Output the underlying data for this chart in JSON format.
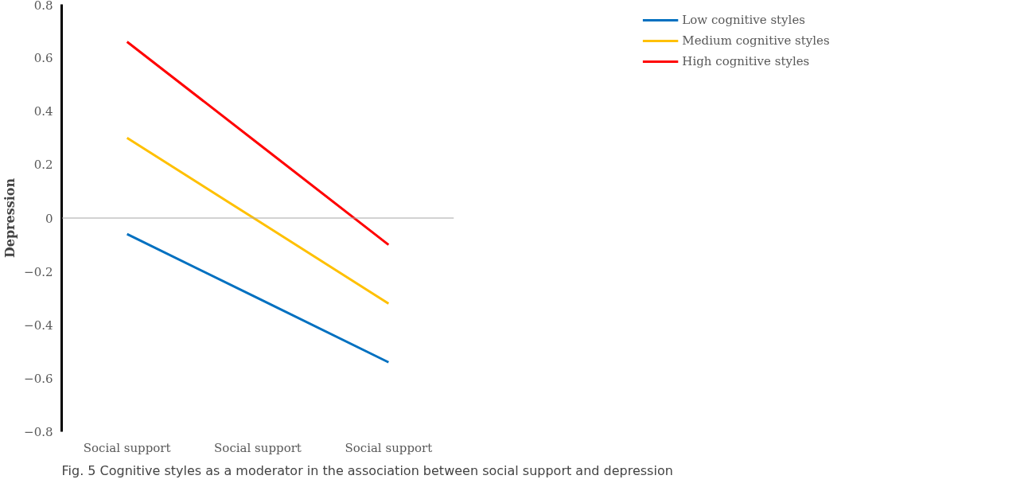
{
  "chart_data": {
    "type": "line",
    "ylabel": "Depression",
    "categories": [
      "Social support",
      "Social support",
      "Social support"
    ],
    "series": [
      {
        "name": "Low cognitive styles",
        "color": "#0070c0",
        "values": [
          -0.06,
          -0.3,
          -0.54
        ]
      },
      {
        "name": "Medium cognitive styles",
        "color": "#ffc000",
        "values": [
          0.3,
          -0.01,
          -0.32
        ]
      },
      {
        "name": "High cognitive styles",
        "color": "#ff0000",
        "values": [
          0.66,
          0.28,
          -0.1
        ]
      }
    ],
    "ylim": [
      -0.8,
      0.8
    ],
    "yticks": [
      {
        "value": -0.8,
        "label": "−0.8"
      },
      {
        "value": -0.6,
        "label": "−0.6"
      },
      {
        "value": -0.4,
        "label": "−0.4"
      },
      {
        "value": -0.2,
        "label": "−0.2"
      },
      0,
      0.2,
      0.4,
      0.6,
      0.8
    ],
    "ref_lines": [
      {
        "axis": "y",
        "value": 0,
        "color": "#a6a6a6"
      }
    ],
    "grid": false,
    "legend": "top right",
    "marker": "none",
    "line_style": "solid",
    "annotations": [
      "Fig. 5  Cognitive styles as a moderator in the association between social support and depression"
    ]
  }
}
